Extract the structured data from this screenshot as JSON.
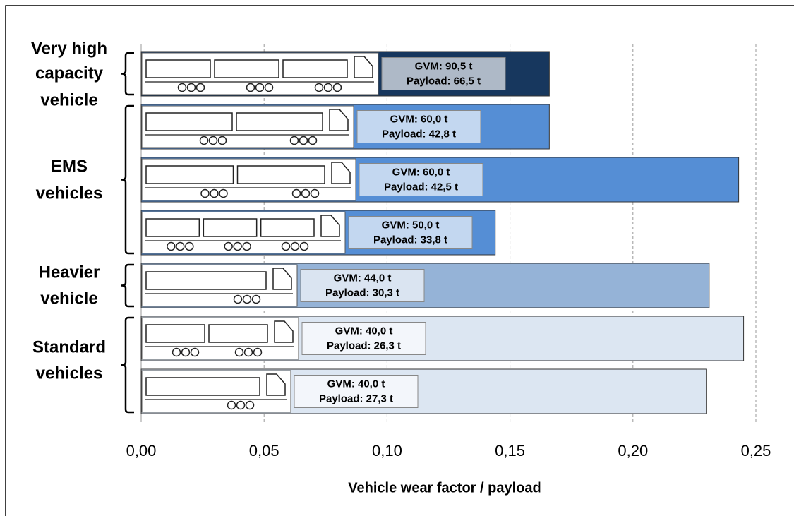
{
  "chart_data": {
    "type": "bar",
    "orientation": "horizontal",
    "x_label": "Vehicle wear factor / payload",
    "xlim": [
      0,
      0.25
    ],
    "xticks": [
      {
        "value": 0,
        "label": "0,00"
      },
      {
        "value": 0.05,
        "label": "0,05"
      },
      {
        "value": 0.1,
        "label": "0,10"
      },
      {
        "value": 0.15,
        "label": "0,15"
      },
      {
        "value": 0.2,
        "label": "0,20"
      },
      {
        "value": 0.25,
        "label": "0,25"
      }
    ],
    "grid": true,
    "groups": [
      {
        "label_lines": [
          "Very high",
          "capacity",
          "vehicle"
        ],
        "color": "#17375e",
        "values": [
          0.166
        ],
        "annotations": [
          {
            "gvm": "GVM: 90,5 t",
            "payload": "Payload: 66,5 t"
          }
        ]
      },
      {
        "label_lines": [
          "EMS",
          "vehicles"
        ],
        "color": "#558ed5",
        "values": [
          0.166,
          0.243,
          0.144
        ],
        "annotations": [
          {
            "gvm": "GVM: 60,0 t",
            "payload": "Payload: 42,8 t"
          },
          {
            "gvm": "GVM: 60,0 t",
            "payload": "Payload: 42,5 t"
          },
          {
            "gvm": "GVM: 50,0 t",
            "payload": "Payload: 33,8 t"
          }
        ]
      },
      {
        "label_lines": [
          "Heavier",
          "vehicle"
        ],
        "color": "#95b3d7",
        "values": [
          0.231
        ],
        "annotations": [
          {
            "gvm": "GVM: 44,0 t",
            "payload": "Payload: 30,3 t"
          }
        ]
      },
      {
        "label_lines": [
          "Standard",
          "vehicles"
        ],
        "color": "#dce6f2",
        "values": [
          0.245,
          0.23
        ],
        "annotations": [
          {
            "gvm": "GVM: 40,0 t",
            "payload": "Payload: 26,3 t"
          },
          {
            "gvm": "GVM: 40,0 t",
            "payload": "Payload: 27,3 t"
          }
        ]
      }
    ]
  }
}
